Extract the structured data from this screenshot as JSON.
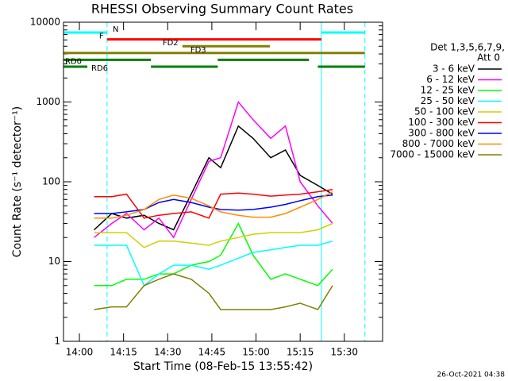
{
  "chart_data": {
    "type": "line",
    "title": "RHESSI Observing Summary Count Rates",
    "xlabel": "Start Time (08-Feb-15 13:55:42)",
    "ylabel": "Count Rate (s⁻¹ detector⁻¹)",
    "footer": "26-Oct-2021 04:38",
    "legend_title": [
      "Det 1,3,5,6,7,9,",
      "Att 0"
    ],
    "log_y": true,
    "xlim": [
      -5.4,
      103
    ],
    "xticks": [
      {
        "value": 0,
        "label": "14:00"
      },
      {
        "value": 15,
        "label": "14:15"
      },
      {
        "value": 30,
        "label": "14:30"
      },
      {
        "value": 45,
        "label": "14:45"
      },
      {
        "value": 60,
        "label": "15:00"
      },
      {
        "value": 75,
        "label": "15:15"
      },
      {
        "value": 90,
        "label": "15:30"
      }
    ],
    "ylim": [
      1,
      10000
    ],
    "yticks": [
      1,
      10,
      100,
      1000,
      10000
    ],
    "x": [
      5,
      11,
      16,
      22,
      27,
      32,
      38,
      44,
      48,
      54,
      59,
      65,
      70,
      75,
      81,
      86
    ],
    "series": [
      {
        "name": "3 - 6 keV",
        "color": "#000000",
        "values": [
          25,
          40,
          35,
          38,
          30,
          25,
          70,
          200,
          150,
          500,
          350,
          200,
          250,
          120,
          90,
          70
        ]
      },
      {
        "name": "6 - 12 keV",
        "color": "#ff00ff",
        "values": [
          20,
          30,
          40,
          25,
          35,
          20,
          60,
          180,
          200,
          1000,
          600,
          350,
          500,
          100,
          50,
          30
        ]
      },
      {
        "name": "12 - 25 keV",
        "color": "#00ff00",
        "values": [
          5,
          5,
          6,
          6,
          7,
          7,
          9,
          10,
          12,
          30,
          12,
          6,
          7,
          6,
          5,
          8
        ]
      },
      {
        "name": "25 - 50 keV",
        "color": "#00ffff",
        "values": [
          16,
          16,
          16,
          5,
          7,
          9,
          9,
          8,
          9,
          11,
          13,
          14,
          15,
          16,
          16,
          18
        ]
      },
      {
        "name": "50 - 100 keV",
        "color": "#d0d000",
        "values": [
          23,
          23,
          23,
          15,
          18,
          18,
          17,
          16,
          18,
          20,
          22,
          23,
          23,
          23,
          25,
          30
        ]
      },
      {
        "name": "100 - 300 keV",
        "color": "#ff0000",
        "values": [
          65,
          65,
          70,
          35,
          38,
          40,
          42,
          35,
          70,
          72,
          70,
          66,
          68,
          70,
          75,
          80
        ]
      },
      {
        "name": "300 - 800 keV",
        "color": "#0000ff",
        "values": [
          40,
          40,
          42,
          45,
          55,
          60,
          55,
          48,
          45,
          44,
          45,
          48,
          52,
          58,
          65,
          68
        ]
      },
      {
        "name": "800 - 7000 keV",
        "color": "#ff8c00",
        "values": [
          35,
          35,
          38,
          45,
          60,
          68,
          62,
          50,
          42,
          38,
          36,
          36,
          40,
          48,
          60,
          75
        ]
      },
      {
        "name": "7000 - 15000 keV",
        "color": "#808000",
        "values": [
          2.5,
          2.7,
          2.7,
          5,
          6,
          7,
          6,
          4,
          2.5,
          2.5,
          2.5,
          2.5,
          2.7,
          3,
          2.5,
          5
        ]
      }
    ],
    "flags": [
      {
        "label": "N",
        "color": "#00ffff",
        "intervals": [
          [
            -5.4,
            9.4
          ],
          [
            82.2,
            97
          ]
        ]
      },
      {
        "label": "F",
        "color": "#ff0000",
        "intervals": [
          [
            9.4,
            82.2
          ]
        ]
      },
      {
        "label": "FD2",
        "color": "#808000",
        "intervals": [
          [
            35,
            64.7
          ]
        ]
      },
      {
        "label": "FD3",
        "color": "#808000",
        "intervals": [
          [
            -5.4,
            97
          ]
        ]
      },
      {
        "label": "RD0",
        "color": "#008000",
        "intervals": [
          [
            -5.4,
            24.3
          ],
          [
            47,
            78
          ]
        ]
      },
      {
        "label": "RD6",
        "color": "#008000",
        "intervals": [
          [
            -5.4,
            2.7
          ],
          [
            24.3,
            47
          ],
          [
            81,
            97
          ]
        ]
      }
    ],
    "vlines": {
      "color": "#00ffff",
      "dashed": [
        9.4,
        97
      ],
      "solid": [
        82.2
      ]
    }
  }
}
